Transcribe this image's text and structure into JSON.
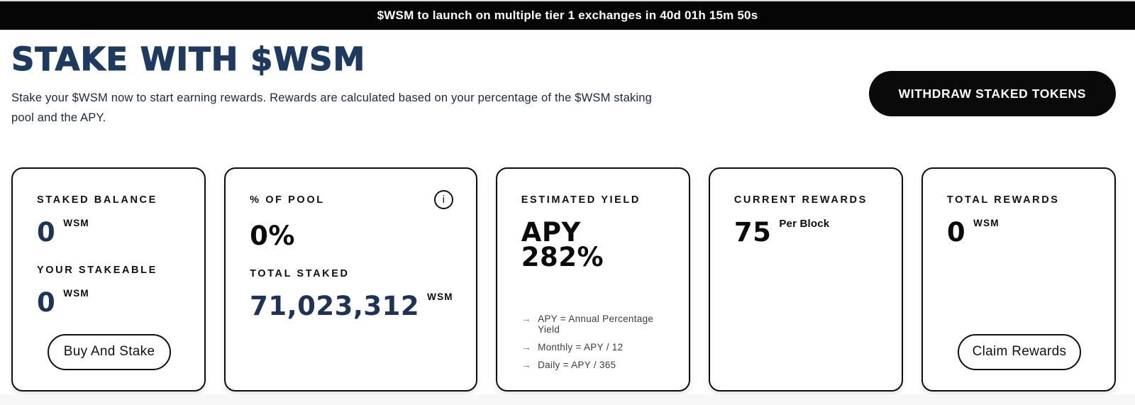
{
  "banner": {
    "text": "$WSM to launch on multiple tier 1 exchanges in 40d 01h 15m 50s"
  },
  "header": {
    "title": "STAKE WITH $WSM",
    "description": "Stake your $WSM now to start earning rewards. Rewards are calculated based on your percentage of the $WSM staking pool and the APY.",
    "withdraw_button_label": "WITHDRAW STAKED TOKENS"
  },
  "icons": {
    "info": "i",
    "arrow_right": "→"
  },
  "cards": {
    "staked_balance": {
      "label": "STAKED BALANCE",
      "value": "0",
      "unit": "WSM",
      "stakeable_label": "YOUR STAKEABLE",
      "stakeable_value": "0",
      "stakeable_unit": "WSM",
      "buy_button_label": "Buy And Stake"
    },
    "pool": {
      "label": "% OF POOL",
      "value": "0%",
      "total_staked_label": "TOTAL STAKED",
      "total_staked_value": "71,023,312",
      "total_staked_unit": "WSM"
    },
    "estimated_yield": {
      "label": "ESTIMATED YIELD",
      "value": "APY 282%",
      "notes": [
        "APY = Annual Percentage Yield",
        "Monthly = APY / 12",
        "Daily = APY / 365"
      ]
    },
    "current_rewards": {
      "label": "CURRENT REWARDS",
      "value": "75",
      "unit": "Per Block"
    },
    "total_rewards": {
      "label": "TOTAL REWARDS",
      "value": "0",
      "unit": "WSM",
      "claim_button_label": "Claim Rewards"
    }
  },
  "colors": {
    "banner_bg": "#050505",
    "heading_navy": "#1e3a5f",
    "number_navy": "#1e3356",
    "text_black": "#0b0b0b"
  }
}
